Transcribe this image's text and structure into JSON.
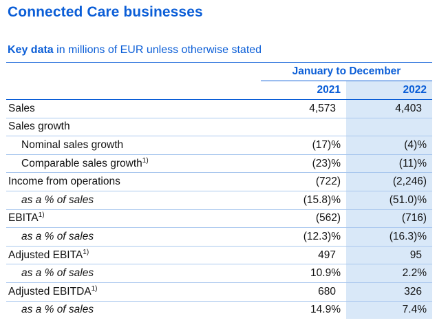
{
  "document": {
    "title": "Connected Care businesses",
    "subtitle_strong": "Key data",
    "subtitle_rest": " in millions of EUR unless otherwise stated"
  },
  "table": {
    "period_header": "January to December",
    "years": [
      "2021",
      "2022"
    ],
    "rows": [
      {
        "label": "Sales",
        "sup": "",
        "v2021": "4,573",
        "v2022": "4,403"
      },
      {
        "label": "Sales growth",
        "sup": "",
        "v2021": "",
        "v2022": ""
      },
      {
        "label": "Nominal sales growth",
        "sup": "",
        "v2021": "(17)%",
        "v2022": "(4)%"
      },
      {
        "label": "Comparable sales growth",
        "sup": "1)",
        "v2021": "(23)%",
        "v2022": "(11)%"
      },
      {
        "label": "Income from operations",
        "sup": "",
        "v2021": "(722)",
        "v2022": "(2,246)"
      },
      {
        "label": "as a % of sales",
        "sup": "",
        "v2021": "(15.8)%",
        "v2022": "(51.0)%"
      },
      {
        "label": "EBITA",
        "sup": "1)",
        "v2021": "(562)",
        "v2022": "(716)"
      },
      {
        "label": "as a % of sales",
        "sup": "",
        "v2021": "(12.3)%",
        "v2022": "(16.3)%"
      },
      {
        "label": "Adjusted EBITA",
        "sup": "1)",
        "v2021": "497",
        "v2022": "95"
      },
      {
        "label": "as a % of sales",
        "sup": "",
        "v2021": "10.9%",
        "v2022": "2.2%"
      },
      {
        "label": "Adjusted EBITDA",
        "sup": "1)",
        "v2021": "680",
        "v2022": "326"
      },
      {
        "label": "as a % of sales",
        "sup": "",
        "v2021": "14.9%",
        "v2022": "7.4%"
      }
    ]
  },
  "colors": {
    "accent": "#0b5ed7",
    "highlight_column": "#d9e8f8",
    "row_rule": "#a9c7ee"
  }
}
